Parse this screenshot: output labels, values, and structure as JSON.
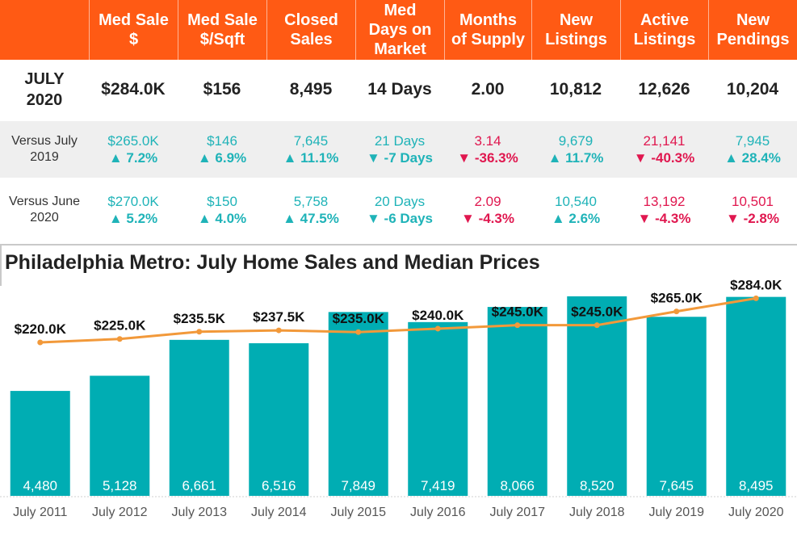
{
  "table": {
    "headers": [
      "",
      "Med Sale $",
      "Med Sale $/Sqft",
      "Closed Sales",
      "Med Days on Market",
      "Months of Supply",
      "New Listings",
      "Active Listings",
      "New Pendings"
    ],
    "header_lines": [
      [
        ""
      ],
      [
        "Med Sale",
        "$"
      ],
      [
        "Med Sale",
        "$/Sqft"
      ],
      [
        "Closed",
        "Sales"
      ],
      [
        "Med",
        "Days on",
        "Market"
      ],
      [
        "Months",
        "of Supply"
      ],
      [
        "New",
        "Listings"
      ],
      [
        "Active",
        "Listings"
      ],
      [
        "New",
        "Pendings"
      ]
    ],
    "current": {
      "label_lines": [
        "JULY",
        "2020"
      ],
      "values": [
        "$284.0K",
        "$156",
        "8,495",
        "14 Days",
        "2.00",
        "10,812",
        "12,626",
        "10,204"
      ]
    },
    "comparisons": [
      {
        "label_lines": [
          "Versus July",
          "2019"
        ],
        "values": [
          "$265.0K",
          "$146",
          "7,645",
          "21 Days",
          "3.14",
          "9,679",
          "21,141",
          "7,945"
        ],
        "changes": [
          "▲ 7.2%",
          "▲ 6.9%",
          "▲ 11.1%",
          "▼ -7 Days",
          "▼ -36.3%",
          "▲ 11.7%",
          "▼ -40.3%",
          "▲ 28.4%"
        ],
        "colors": [
          "up",
          "up",
          "up",
          "up",
          "down",
          "up",
          "down",
          "up"
        ]
      },
      {
        "label_lines": [
          "Versus June",
          "2020"
        ],
        "values": [
          "$270.0K",
          "$150",
          "5,758",
          "20 Days",
          "2.09",
          "10,540",
          "13,192",
          "10,501"
        ],
        "changes": [
          "▲ 5.2%",
          "▲ 4.0%",
          "▲ 47.5%",
          "▼ -6 Days",
          "▼ -4.3%",
          "▲ 2.6%",
          "▼ -4.3%",
          "▼ -2.8%"
        ],
        "colors": [
          "up",
          "up",
          "up",
          "up",
          "down",
          "up",
          "down",
          "down"
        ]
      }
    ]
  },
  "colors": {
    "header_bg": "#ff5a14",
    "up": "#1fb3b8",
    "down": "#e0174f",
    "bar": "#00adb3",
    "line": "#f2993a"
  },
  "chart_data": {
    "type": "bar",
    "title": "Philadelphia Metro: July Home Sales and Median Prices",
    "categories": [
      "July 2011",
      "July 2012",
      "July 2013",
      "July 2014",
      "July 2015",
      "July 2016",
      "July 2017",
      "July 2018",
      "July 2019",
      "July 2020"
    ],
    "series": [
      {
        "type": "bar",
        "values": [
          4480,
          5128,
          6661,
          6516,
          7849,
          7419,
          8066,
          8520,
          7645,
          8495
        ],
        "labels": [
          "4,480",
          "5,128",
          "6,661",
          "6,516",
          "7,849",
          "7,419",
          "8,066",
          "8,520",
          "7,645",
          "8,495"
        ]
      },
      {
        "type": "line",
        "values": [
          220.0,
          225.0,
          235.5,
          237.5,
          235.0,
          240.0,
          245.0,
          245.0,
          265.0,
          284.0
        ],
        "labels": [
          "$220.0K",
          "$225.0K",
          "$235.5K",
          "$237.5K",
          "$235.0K",
          "$240.0K",
          "$245.0K",
          "$245.0K",
          "$265.0K",
          "$284.0K"
        ]
      }
    ]
  }
}
